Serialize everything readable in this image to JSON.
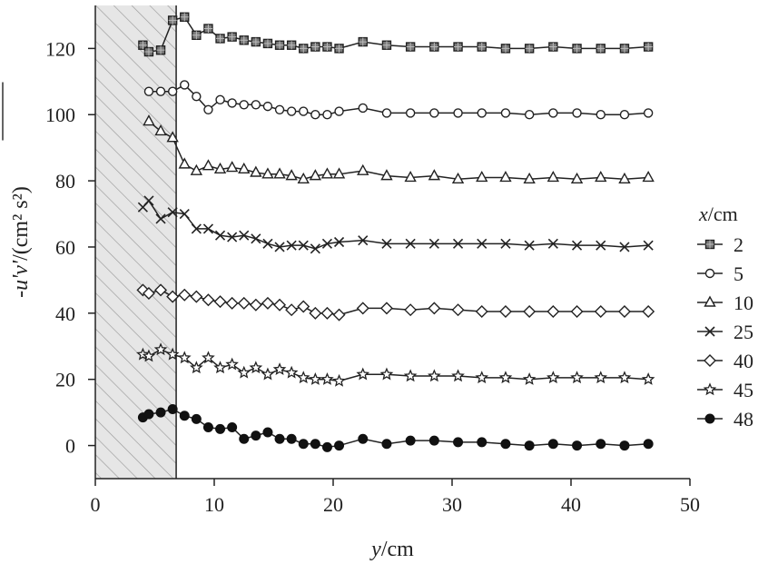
{
  "chart_data": {
    "type": "line",
    "xlabel": "y/cm",
    "ylabel": "-u'v'/(cm² s²)",
    "xlim": [
      0,
      50
    ],
    "ylim": [
      -10,
      133
    ],
    "xticks": [
      0,
      10,
      20,
      30,
      40,
      50
    ],
    "yticks": [
      0,
      20,
      40,
      60,
      80,
      100,
      120
    ],
    "shaded_region": [
      0,
      6.8
    ],
    "legend": {
      "title": "x/cm",
      "placement": "right"
    },
    "series": [
      {
        "name": "2",
        "marker": "square",
        "x": [
          4.0,
          4.5,
          5.5,
          6.5,
          7.5,
          8.5,
          9.5,
          10.5,
          11.5,
          12.5,
          13.5,
          14.5,
          15.5,
          16.5,
          17.5,
          18.5,
          19.5,
          20.5,
          22.5,
          24.5,
          26.5,
          28.5,
          30.5,
          32.5,
          34.5,
          36.5,
          38.5,
          40.5,
          42.5,
          44.5,
          46.5
        ],
        "y": [
          121,
          119,
          119.5,
          128.5,
          129.5,
          124,
          126,
          123,
          123.5,
          122.5,
          122,
          121.5,
          121,
          121,
          120,
          120.5,
          120.5,
          120,
          122,
          121,
          120.5,
          120.5,
          120.5,
          120.5,
          120,
          120,
          120.5,
          120,
          120,
          120,
          120.5
        ]
      },
      {
        "name": "5",
        "marker": "circle-open",
        "x": [
          4.5,
          5.5,
          6.5,
          7.5,
          8.5,
          9.5,
          10.5,
          11.5,
          12.5,
          13.5,
          14.5,
          15.5,
          16.5,
          17.5,
          18.5,
          19.5,
          20.5,
          22.5,
          24.5,
          26.5,
          28.5,
          30.5,
          32.5,
          34.5,
          36.5,
          38.5,
          40.5,
          42.5,
          44.5,
          46.5
        ],
        "y": [
          107,
          107,
          107,
          109,
          105.5,
          101.5,
          104.5,
          103.5,
          103,
          103,
          102.5,
          101.5,
          101,
          101,
          100,
          100,
          101,
          102,
          100.5,
          100.5,
          100.5,
          100.5,
          100.5,
          100.5,
          100,
          100.5,
          100.5,
          100,
          100,
          100.5
        ]
      },
      {
        "name": "10",
        "marker": "triangle-open",
        "x": [
          4.5,
          5.5,
          6.5,
          7.5,
          8.5,
          9.5,
          10.5,
          11.5,
          12.5,
          13.5,
          14.5,
          15.5,
          16.5,
          17.5,
          18.5,
          19.5,
          20.5,
          22.5,
          24.5,
          26.5,
          28.5,
          30.5,
          32.5,
          34.5,
          36.5,
          38.5,
          40.5,
          42.5,
          44.5,
          46.5
        ],
        "y": [
          98,
          95,
          93,
          85,
          83,
          84.5,
          83.5,
          84,
          83.5,
          82.5,
          82,
          82,
          81.5,
          80.5,
          81.5,
          82,
          82,
          83,
          81.5,
          81,
          81.5,
          80.5,
          81,
          81,
          80.5,
          81,
          80.5,
          81,
          80.5,
          81
        ]
      },
      {
        "name": "25",
        "marker": "x",
        "x": [
          4.0,
          4.5,
          5.5,
          6.5,
          7.5,
          8.5,
          9.5,
          10.5,
          11.5,
          12.5,
          13.5,
          14.5,
          15.5,
          16.5,
          17.5,
          18.5,
          19.5,
          20.5,
          22.5,
          24.5,
          26.5,
          28.5,
          30.5,
          32.5,
          34.5,
          36.5,
          38.5,
          40.5,
          42.5,
          44.5,
          46.5
        ],
        "y": [
          72,
          74,
          68.5,
          70.5,
          70,
          65.5,
          65.5,
          63.5,
          63,
          63.5,
          62.5,
          61,
          60,
          60.5,
          60.5,
          59.5,
          61,
          61.5,
          62,
          61,
          61,
          61,
          61,
          61,
          61,
          60.5,
          61,
          60.5,
          60.5,
          60,
          60.5
        ]
      },
      {
        "name": "40",
        "marker": "diamond-open",
        "x": [
          4.0,
          4.5,
          5.5,
          6.5,
          7.5,
          8.5,
          9.5,
          10.5,
          11.5,
          12.5,
          13.5,
          14.5,
          15.5,
          16.5,
          17.5,
          18.5,
          19.5,
          20.5,
          22.5,
          24.5,
          26.5,
          28.5,
          30.5,
          32.5,
          34.5,
          36.5,
          38.5,
          40.5,
          42.5,
          44.5,
          46.5
        ],
        "y": [
          47,
          46,
          47,
          45,
          45.5,
          45,
          44,
          43.5,
          43,
          43,
          42.5,
          43,
          42.5,
          41,
          42,
          40,
          40,
          39.5,
          41.5,
          41.5,
          41,
          41.5,
          41,
          40.5,
          40.5,
          40.5,
          40.5,
          40.5,
          40.5,
          40.5,
          40.5
        ]
      },
      {
        "name": "45",
        "marker": "star",
        "x": [
          4.0,
          4.5,
          5.5,
          6.5,
          7.5,
          8.5,
          9.5,
          10.5,
          11.5,
          12.5,
          13.5,
          14.5,
          15.5,
          16.5,
          17.5,
          18.5,
          19.5,
          20.5,
          22.5,
          24.5,
          26.5,
          28.5,
          30.5,
          32.5,
          34.5,
          36.5,
          38.5,
          40.5,
          42.5,
          44.5,
          46.5
        ],
        "y": [
          27.5,
          27,
          29,
          27.5,
          26.5,
          23.5,
          26.5,
          23.5,
          24.5,
          22,
          23.5,
          21.5,
          23,
          22,
          20.5,
          20,
          20,
          19.5,
          21.5,
          21.5,
          21,
          21,
          21,
          20.5,
          20.5,
          20,
          20.5,
          20.5,
          20.5,
          20.5,
          20
        ]
      },
      {
        "name": "48",
        "marker": "circle-filled",
        "x": [
          4.0,
          4.5,
          5.5,
          6.5,
          7.5,
          8.5,
          9.5,
          10.5,
          11.5,
          12.5,
          13.5,
          14.5,
          15.5,
          16.5,
          17.5,
          18.5,
          19.5,
          20.5,
          22.5,
          24.5,
          26.5,
          28.5,
          30.5,
          32.5,
          34.5,
          36.5,
          38.5,
          40.5,
          42.5,
          44.5,
          46.5
        ],
        "y": [
          8.5,
          9.5,
          10,
          11,
          9,
          8,
          5.5,
          5,
          5.5,
          2,
          3,
          4,
          2,
          2,
          0.5,
          0.5,
          -0.5,
          0,
          2,
          0.5,
          1.5,
          1.5,
          1,
          1,
          0.5,
          0,
          0.5,
          0,
          0.5,
          0,
          0.5
        ]
      }
    ]
  }
}
